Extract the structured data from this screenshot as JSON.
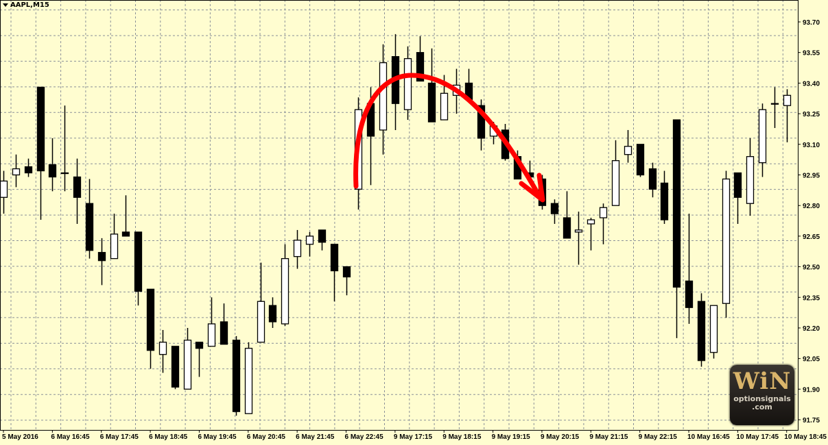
{
  "window": {
    "title": "AAPL,M15",
    "menu_icon": "triangle-down-icon"
  },
  "colors": {
    "background": "#fffdd0",
    "grid": "#8a9098",
    "bull_body": "#ffffff",
    "bear_body": "#000000",
    "annotation_arrow": "#ff0000"
  },
  "logo": {
    "text_big": "WiN",
    "text_small_1": "optionsignals",
    "text_small_2": ".com"
  },
  "chart_data": {
    "type": "candlestick",
    "symbol": "AAPL",
    "timeframe": "M15",
    "ylim": [
      91.72,
      93.78
    ],
    "yticks": [
      "93.70",
      "93.55",
      "93.40",
      "93.25",
      "93.10",
      "92.95",
      "92.80",
      "92.65",
      "92.50",
      "92.35",
      "92.20",
      "92.05",
      "91.90",
      "91.75"
    ],
    "xtick_labels": [
      "5 May 2016",
      "6 May 16:45",
      "6 May 17:45",
      "6 May 18:45",
      "6 May 19:45",
      "6 May 20:45",
      "6 May 21:45",
      "6 May 22:45",
      "9 May 17:15",
      "9 May 18:15",
      "9 May 19:15",
      "9 May 20:15",
      "9 May 21:15",
      "9 May 22:15",
      "10 May 16:45",
      "10 May 17:45",
      "10 May 18:45"
    ],
    "grid": true,
    "ohlc": [
      [
        92.84,
        92.97,
        92.76,
        92.92
      ],
      [
        92.95,
        93.05,
        92.89,
        92.98
      ],
      [
        92.99,
        93.03,
        92.94,
        92.96
      ],
      [
        93.38,
        93.38,
        92.73,
        92.97
      ],
      [
        93.0,
        93.13,
        92.87,
        92.94
      ],
      [
        92.96,
        93.29,
        92.87,
        92.96
      ],
      [
        92.94,
        93.03,
        92.71,
        92.84
      ],
      [
        92.81,
        92.93,
        92.54,
        92.58
      ],
      [
        92.57,
        92.64,
        92.41,
        92.53
      ],
      [
        92.54,
        92.76,
        92.54,
        92.66
      ],
      [
        92.67,
        92.85,
        92.65,
        92.65
      ],
      [
        92.67,
        92.67,
        92.31,
        92.38
      ],
      [
        92.39,
        92.39,
        92.0,
        92.09
      ],
      [
        92.07,
        92.19,
        91.98,
        92.13
      ],
      [
        92.11,
        92.11,
        91.9,
        91.91
      ],
      [
        91.9,
        92.2,
        91.9,
        92.14
      ],
      [
        92.13,
        92.13,
        91.96,
        92.1
      ],
      [
        92.11,
        92.35,
        92.11,
        92.22
      ],
      [
        92.23,
        92.32,
        92.12,
        92.12
      ],
      [
        92.14,
        92.16,
        91.77,
        91.79
      ],
      [
        91.78,
        92.13,
        91.78,
        92.1
      ],
      [
        92.13,
        92.52,
        92.13,
        92.33
      ],
      [
        92.31,
        92.35,
        92.2,
        92.23
      ],
      [
        92.22,
        92.61,
        92.21,
        92.54
      ],
      [
        92.55,
        92.68,
        92.49,
        92.63
      ],
      [
        92.61,
        92.67,
        92.55,
        92.65
      ],
      [
        92.68,
        92.68,
        92.58,
        92.62
      ],
      [
        92.61,
        92.61,
        92.33,
        92.48
      ],
      [
        92.5,
        92.5,
        92.36,
        92.45
      ],
      [
        92.88,
        93.33,
        92.78,
        93.27
      ],
      [
        93.3,
        93.38,
        92.9,
        93.14
      ],
      [
        93.17,
        93.59,
        93.05,
        93.5
      ],
      [
        93.53,
        93.64,
        93.17,
        93.3
      ],
      [
        93.27,
        93.58,
        93.22,
        93.52
      ],
      [
        93.55,
        93.63,
        93.41,
        93.41
      ],
      [
        93.4,
        93.57,
        93.21,
        93.21
      ],
      [
        93.22,
        93.44,
        93.22,
        93.35
      ],
      [
        93.34,
        93.47,
        93.25,
        93.39
      ],
      [
        93.4,
        93.47,
        93.32,
        93.32
      ],
      [
        93.29,
        93.32,
        93.07,
        93.13
      ],
      [
        93.14,
        93.21,
        93.1,
        93.19
      ],
      [
        93.17,
        93.2,
        93.02,
        93.03
      ],
      [
        93.04,
        93.07,
        92.93,
        92.93
      ],
      [
        92.96,
        93.02,
        92.92,
        92.94
      ],
      [
        92.93,
        92.95,
        92.78,
        92.8
      ],
      [
        92.81,
        92.83,
        92.71,
        92.76
      ],
      [
        92.74,
        92.87,
        92.64,
        92.64
      ],
      [
        92.67,
        92.77,
        92.51,
        92.68
      ],
      [
        92.71,
        92.74,
        92.58,
        92.73
      ],
      [
        92.74,
        92.81,
        92.61,
        92.79
      ],
      [
        92.8,
        93.12,
        92.8,
        93.02
      ],
      [
        93.05,
        93.17,
        93.01,
        93.09
      ],
      [
        93.1,
        93.1,
        92.94,
        92.95
      ],
      [
        92.98,
        93.01,
        92.84,
        92.88
      ],
      [
        92.91,
        92.97,
        92.71,
        92.73
      ],
      [
        93.22,
        93.22,
        92.15,
        92.4
      ],
      [
        92.43,
        92.76,
        92.22,
        92.3
      ],
      [
        92.33,
        92.37,
        92.01,
        92.04
      ],
      [
        92.08,
        92.31,
        92.05,
        92.31
      ],
      [
        92.32,
        92.97,
        92.25,
        92.93
      ],
      [
        92.96,
        92.96,
        92.71,
        92.84
      ],
      [
        92.81,
        93.13,
        92.75,
        93.04
      ],
      [
        93.01,
        93.3,
        92.94,
        93.27
      ],
      [
        93.3,
        93.38,
        93.18,
        93.3
      ],
      [
        93.29,
        93.37,
        93.11,
        93.34
      ]
    ]
  }
}
